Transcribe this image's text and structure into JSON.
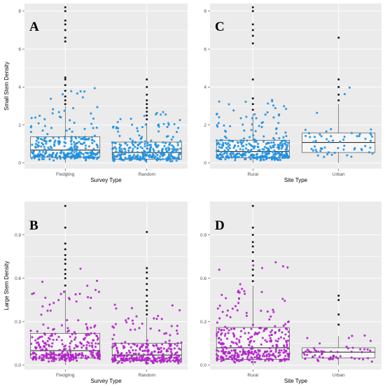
{
  "colors": {
    "panel_bg": "#ebebeb",
    "grid": "#ffffff",
    "small_stem_points": "#1e90e0",
    "large_stem_points": "#b020c8",
    "outliers": "#1a1a1a",
    "box_fill": "#f8f8f8",
    "box_line": "#333333"
  },
  "chart_data": [
    {
      "panel": "A",
      "type": "box",
      "xlabel": "Survey Type",
      "ylabel": "Small Stem Density",
      "categories": [
        "Fledgling",
        "Random"
      ],
      "ylim": [
        -0.3,
        8.4
      ],
      "yticks": [
        0,
        2,
        4,
        6,
        8
      ],
      "grid": true,
      "jitter_points": true,
      "boxes": [
        {
          "category": "Fledgling",
          "q1": 0.3,
          "median": 0.68,
          "q3": 1.38,
          "whisker_low": 0,
          "whisker_high": 3.0,
          "n_points": 300,
          "outliers": [
            3.1,
            3.3,
            3.5,
            3.8,
            4.1,
            4.4,
            4.5,
            6.4,
            6.6,
            7.0,
            7.3,
            7.5,
            8.0,
            8.2
          ]
        },
        {
          "category": "Random",
          "q1": 0.2,
          "median": 0.55,
          "q3": 1.1,
          "whisker_low": 0,
          "whisker_high": 2.1,
          "n_points": 280,
          "outliers": [
            2.3,
            2.5,
            2.7,
            2.9,
            3.1,
            3.3,
            3.6,
            4.0,
            4.4
          ]
        }
      ]
    },
    {
      "panel": "C",
      "type": "box",
      "xlabel": "Site Type",
      "ylabel": "",
      "categories": [
        "Rural",
        "Urban"
      ],
      "ylim": [
        -0.3,
        8.4
      ],
      "yticks": [
        0,
        2,
        4,
        6,
        8
      ],
      "grid": true,
      "jitter_points": true,
      "boxes": [
        {
          "category": "Rural",
          "q1": 0.28,
          "median": 0.6,
          "q3": 1.2,
          "whisker_low": 0,
          "whisker_high": 2.6,
          "n_points": 340,
          "outliers": [
            2.8,
            3.1,
            3.4,
            4.4,
            6.3,
            6.7,
            7.0,
            7.3,
            8.0,
            8.2
          ]
        },
        {
          "category": "Urban",
          "q1": 0.55,
          "median": 1.08,
          "q3": 1.58,
          "whisker_low": 0,
          "whisker_high": 3.1,
          "n_points": 60,
          "outliers": [
            3.3,
            3.6,
            4.0,
            4.4,
            6.6
          ]
        }
      ]
    },
    {
      "panel": "B",
      "type": "box",
      "xlabel": "Survey Type",
      "ylabel": "Large Stem Density",
      "categories": [
        "Fledgling",
        "Random"
      ],
      "ylim": [
        -0.03,
        1.13
      ],
      "yticks": [
        0.0,
        0.3,
        0.6,
        0.9
      ],
      "grid": true,
      "jitter_points": true,
      "boxes": [
        {
          "category": "Fledgling",
          "q1": 0.05,
          "median": 0.1,
          "q3": 0.22,
          "whisker_low": 0,
          "whisker_high": 0.52,
          "n_points": 300,
          "outliers": [
            0.55,
            0.6,
            0.63,
            0.66,
            0.7,
            0.73,
            0.76,
            0.8,
            0.84,
            0.95,
            1.1
          ]
        },
        {
          "category": "Random",
          "q1": 0.03,
          "median": 0.07,
          "q3": 0.15,
          "whisker_low": 0,
          "whisker_high": 0.33,
          "n_points": 280,
          "outliers": [
            0.35,
            0.38,
            0.41,
            0.44,
            0.48,
            0.52,
            0.56,
            0.6,
            0.64,
            0.67,
            0.92
          ]
        }
      ]
    },
    {
      "panel": "D",
      "type": "box",
      "xlabel": "Site Type",
      "ylabel": "",
      "categories": [
        "Rural",
        "Urban"
      ],
      "ylim": [
        -0.03,
        1.13
      ],
      "yticks": [
        0.0,
        0.3,
        0.6,
        0.9
      ],
      "grid": true,
      "jitter_points": true,
      "boxes": [
        {
          "category": "Rural",
          "q1": 0.04,
          "median": 0.12,
          "q3": 0.26,
          "whisker_low": 0,
          "whisker_high": 0.55,
          "n_points": 340,
          "outliers": [
            0.58,
            0.62,
            0.66,
            0.72,
            0.78,
            0.82,
            0.85,
            0.9,
            0.95,
            1.1
          ]
        },
        {
          "category": "Urban",
          "q1": 0.05,
          "median": 0.09,
          "q3": 0.12,
          "whisker_low": 0,
          "whisker_high": 0.2,
          "n_points": 60,
          "outliers": [
            0.28,
            0.35,
            0.45,
            0.48
          ]
        }
      ]
    }
  ]
}
